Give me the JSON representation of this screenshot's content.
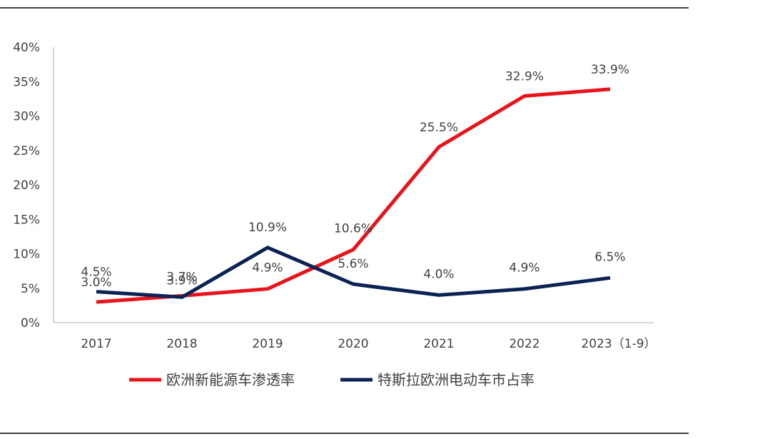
{
  "chart_data": {
    "type": "line",
    "categories": [
      "2017",
      "2018",
      "2019",
      "2020",
      "2021",
      "2022",
      "2023（1-9）"
    ],
    "ylim": [
      0,
      40
    ],
    "yticks": [
      "0%",
      "5%",
      "10%",
      "15%",
      "20%",
      "25%",
      "30%",
      "35%",
      "40%"
    ],
    "grid": false,
    "legend_position": "bottom",
    "series": [
      {
        "name": "欧洲新能源车渗透率",
        "color": "#e8141c",
        "values": [
          3.0,
          3.9,
          4.9,
          10.6,
          25.5,
          32.9,
          33.9
        ],
        "labels": [
          "3.0%",
          "3.9%",
          "4.9%",
          "10.6%",
          "25.5%",
          "32.9%",
          "33.9%"
        ]
      },
      {
        "name": "特斯拉欧洲电动车市占率",
        "color": "#0b2353",
        "values": [
          4.5,
          3.7,
          10.9,
          5.6,
          4.0,
          4.9,
          6.5
        ],
        "labels": [
          "4.5%",
          "3.7%",
          "10.9%",
          "5.6%",
          "4.0%",
          "4.9%",
          "6.5%"
        ]
      }
    ]
  }
}
